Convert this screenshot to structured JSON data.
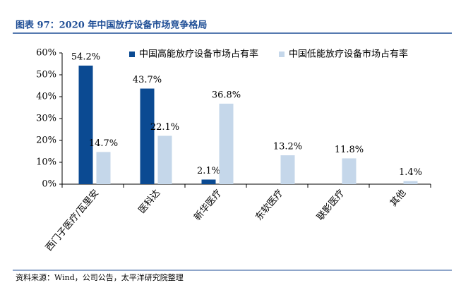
{
  "chart_data": {
    "type": "bar",
    "title": "图表 97：2020 年中国放疗设备市场竞争格局",
    "source": "资料来源：Wind，公司公告，太平洋研究院整理",
    "categories": [
      "西门子医疗/瓦里安",
      "医科达",
      "新华医疗",
      "东软医疗",
      "联影医疗",
      "其他"
    ],
    "series": [
      {
        "name": "中国高能放疗设备市场占有率",
        "color": "#0b4a92",
        "values": [
          54.2,
          43.7,
          2.1,
          null,
          null,
          null
        ],
        "value_labels": [
          "54.2%",
          "43.7%",
          "2.1%",
          null,
          null,
          null
        ]
      },
      {
        "name": "中国低能放疗设备市场占有率",
        "color": "#c5d7ea",
        "values": [
          14.7,
          22.1,
          36.8,
          13.2,
          11.8,
          1.4
        ],
        "value_labels": [
          "14.7%",
          "22.1%",
          "36.8%",
          "13.2%",
          "11.8%",
          "1.4%"
        ]
      }
    ],
    "ylim": [
      0,
      60
    ],
    "yticks": [
      {
        "value": 0,
        "label": "0%"
      },
      {
        "value": 10,
        "label": "10%"
      },
      {
        "value": 20,
        "label": "20%"
      },
      {
        "value": 30,
        "label": "30%"
      },
      {
        "value": 40,
        "label": "40%"
      },
      {
        "value": 50,
        "label": "50%"
      },
      {
        "value": 60,
        "label": "60%"
      }
    ],
    "legend": "top"
  }
}
